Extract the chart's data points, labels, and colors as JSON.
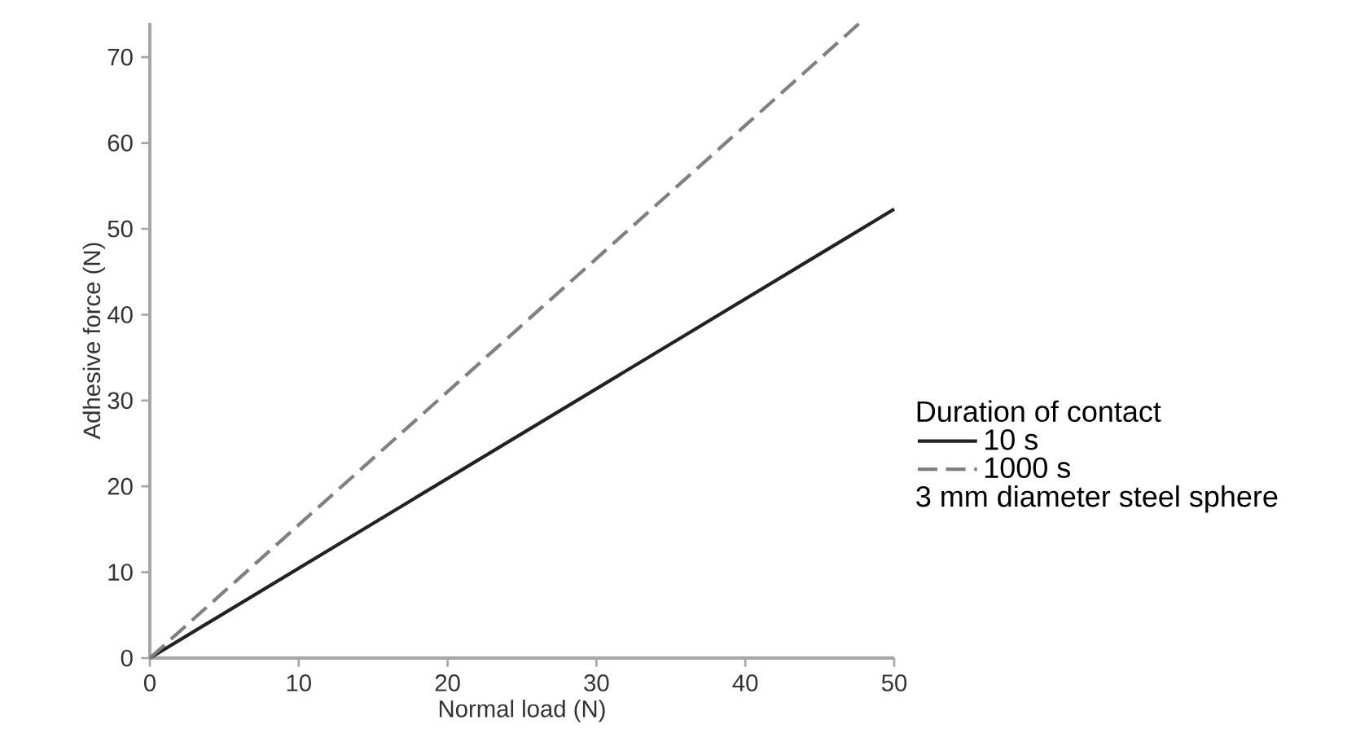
{
  "chart_data": {
    "type": "line",
    "xlabel": "Normal load (N)",
    "ylabel": "Adhesive force (N)",
    "legend_title": "Duration of contact",
    "xlim": [
      0,
      50
    ],
    "ylim": [
      0,
      74
    ],
    "xticks": [
      0,
      10,
      20,
      30,
      40,
      50
    ],
    "yticks": [
      0,
      10,
      20,
      30,
      40,
      50,
      60,
      70
    ],
    "series": [
      {
        "name": "10 s",
        "color": "#222222",
        "line_style": "solid",
        "x": [
          0,
          50
        ],
        "values": [
          0,
          52.3
        ]
      },
      {
        "name": "1000 s",
        "color": "#808080",
        "line_style": "dashed",
        "x": [
          0,
          47.7
        ],
        "values": [
          0,
          74
        ]
      }
    ],
    "annotations": [
      "3 mm diameter steel sphere"
    ],
    "grid": false,
    "legend": "right",
    "marker": "none"
  }
}
